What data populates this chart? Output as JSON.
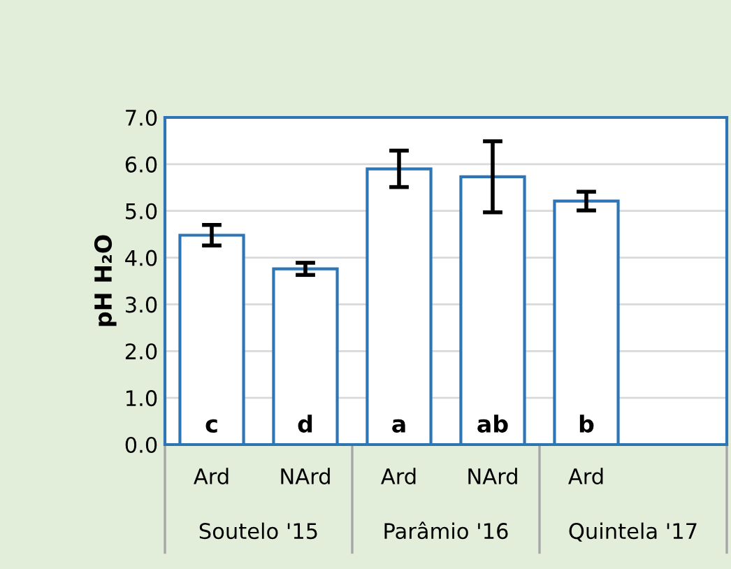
{
  "chart_data": {
    "type": "bar",
    "ylabel": "pH H₂O",
    "categories": [
      "Ard",
      "NArd",
      "Ard",
      "NArd",
      "Ard",
      null
    ],
    "values": [
      4.48,
      3.76,
      5.9,
      5.73,
      5.21,
      null
    ],
    "errors": [
      0.22,
      0.13,
      0.39,
      0.76,
      0.2,
      null
    ],
    "value_labels": [
      "c",
      "d",
      "a",
      "ab",
      "b",
      null
    ],
    "color": "#2e75b6",
    "annotations": [
      "Soutelo '15",
      "Parâmio '16",
      "Quintela '17"
    ],
    "ylim": [
      0,
      7
    ],
    "yticks": [
      {
        "value": 0,
        "label": "0.0"
      },
      {
        "value": 1,
        "label": "1.0"
      },
      {
        "value": 2,
        "label": "2.0"
      },
      {
        "value": 3,
        "label": "3.0"
      },
      {
        "value": 4,
        "label": "4.0"
      },
      {
        "value": 5,
        "label": "5.0"
      },
      {
        "value": 6,
        "label": "6.0"
      },
      {
        "value": 7,
        "label": "7.0"
      }
    ],
    "grid": "y",
    "legend": false
  }
}
